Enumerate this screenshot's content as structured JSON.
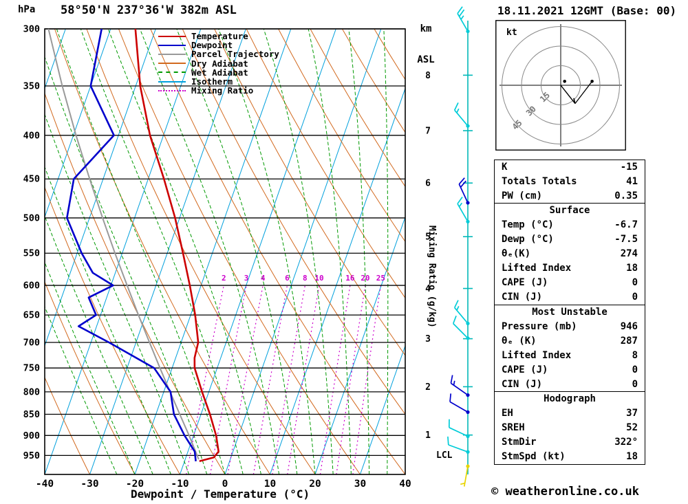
{
  "header": {
    "station": "58°50'N 237°36'W 382m ASL",
    "datetime": "18.11.2021 12GMT (Base: 00)"
  },
  "axes": {
    "hpa_label": "hPa",
    "km_label": "km",
    "asl_label": "ASL",
    "bottom_label": "Dewpoint / Temperature (°C)",
    "mixing_ratio_label": "Mixing Ratio (g/kg)",
    "lcl_label": "LCL",
    "pressure_ticks": [
      300,
      350,
      400,
      450,
      500,
      550,
      600,
      650,
      700,
      750,
      800,
      850,
      900,
      950
    ],
    "temp_ticks": [
      -40,
      -30,
      -20,
      -10,
      0,
      10,
      20,
      30,
      40
    ]
  },
  "legend": [
    {
      "label": "Temperature",
      "color": "#cc0000",
      "style": "solid"
    },
    {
      "label": "Dewpoint",
      "color": "#0000cc",
      "style": "solid"
    },
    {
      "label": "Parcel Trajectory",
      "color": "#999999",
      "style": "solid"
    },
    {
      "label": "Dry Adiabat",
      "color": "#d2691e",
      "style": "solid"
    },
    {
      "label": "Wet Adiabat",
      "color": "#009900",
      "style": "dashed"
    },
    {
      "label": "Isotherm",
      "color": "#00a0dc",
      "style": "solid"
    },
    {
      "label": "Mixing Ratio",
      "color": "#cc00cc",
      "style": "dotted"
    }
  ],
  "colors": {
    "temperature": "#cc0000",
    "dewpoint": "#0000cc",
    "parcel": "#9a9a9a",
    "dry_adiabat": "#d2691e",
    "wet_adiabat": "#009900",
    "isotherm": "#00a0dc",
    "mixing_ratio": "#cc00cc",
    "pressure_line": "#000000",
    "wind_staff": "#00b8b8"
  },
  "chart_data": {
    "type": "line",
    "subtype": "skewt-log-p-sounding",
    "pressure_range_hpa": [
      300,
      1000
    ],
    "temp_axis_range_c": [
      -40,
      40
    ],
    "temperature_profile": [
      [
        965,
        -6.7
      ],
      [
        955,
        -3.8
      ],
      [
        940,
        -3.2
      ],
      [
        900,
        -5
      ],
      [
        850,
        -8
      ],
      [
        800,
        -11.5
      ],
      [
        750,
        -15
      ],
      [
        730,
        -15.8
      ],
      [
        700,
        -16.2
      ],
      [
        650,
        -19
      ],
      [
        600,
        -22.5
      ],
      [
        550,
        -26.5
      ],
      [
        500,
        -31
      ],
      [
        450,
        -36.5
      ],
      [
        400,
        -43
      ],
      [
        350,
        -49
      ],
      [
        300,
        -54.5
      ]
    ],
    "dewpoint_profile": [
      [
        965,
        -7.5
      ],
      [
        940,
        -8.5
      ],
      [
        900,
        -12
      ],
      [
        850,
        -16
      ],
      [
        800,
        -18.5
      ],
      [
        750,
        -24
      ],
      [
        700,
        -36
      ],
      [
        670,
        -44
      ],
      [
        650,
        -41
      ],
      [
        620,
        -44
      ],
      [
        600,
        -39.5
      ],
      [
        580,
        -45
      ],
      [
        550,
        -49
      ],
      [
        500,
        -55
      ],
      [
        450,
        -56.5
      ],
      [
        400,
        -51
      ],
      [
        350,
        -60
      ],
      [
        300,
        -62
      ]
    ],
    "parcel_profile": [
      [
        960,
        -7
      ],
      [
        900,
        -11
      ],
      [
        850,
        -14.7
      ],
      [
        800,
        -18.6
      ],
      [
        750,
        -22.7
      ],
      [
        700,
        -27
      ],
      [
        650,
        -31.6
      ],
      [
        600,
        -36.4
      ],
      [
        550,
        -41.6
      ],
      [
        500,
        -47.1
      ],
      [
        450,
        -53
      ],
      [
        400,
        -59.4
      ],
      [
        350,
        -66.3
      ],
      [
        300,
        -73.8
      ]
    ],
    "lcl_pressure_hpa": 955,
    "isotherm_step_c": 10,
    "mixing_ratio_lines_gkg": [
      2,
      3,
      4,
      6,
      8,
      10,
      16,
      20,
      25
    ],
    "km_levels": [
      {
        "km": 8,
        "p": 340
      },
      {
        "km": 7,
        "p": 395
      },
      {
        "km": 6,
        "p": 455
      },
      {
        "km": 5,
        "p": 526
      },
      {
        "km": 4,
        "p": 605
      },
      {
        "km": 3,
        "p": 693
      },
      {
        "km": 2,
        "p": 789
      },
      {
        "km": 1,
        "p": 899
      }
    ],
    "wind_barbs": [
      {
        "p": 302,
        "speed_kt": 25,
        "dir_deg": 330,
        "color": "#00ccd8"
      },
      {
        "p": 390,
        "speed_kt": 15,
        "dir_deg": 320,
        "color": "#00ccd8"
      },
      {
        "p": 480,
        "speed_kt": 20,
        "dir_deg": 335,
        "color": "#0000cc"
      },
      {
        "p": 505,
        "speed_kt": 15,
        "dir_deg": 330,
        "color": "#00ccd8"
      },
      {
        "p": 665,
        "speed_kt": 15,
        "dir_deg": 320,
        "color": "#00ccd8"
      },
      {
        "p": 692,
        "speed_kt": 10,
        "dir_deg": 315,
        "color": "#00ccd8"
      },
      {
        "p": 807,
        "speed_kt": 15,
        "dir_deg": 305,
        "color": "#0000cc"
      },
      {
        "p": 845,
        "speed_kt": 10,
        "dir_deg": 300,
        "color": "#0000cc"
      },
      {
        "p": 902,
        "speed_kt": 10,
        "dir_deg": 295,
        "color": "#00ccd8"
      },
      {
        "p": 941,
        "speed_kt": 8,
        "dir_deg": 290,
        "color": "#00ccd8"
      },
      {
        "p": 978,
        "speed_kt": 5,
        "dir_deg": 190,
        "color": "#e8d400"
      }
    ]
  },
  "hodograph": {
    "unit_label": "kt",
    "rings_kt": [
      15,
      30,
      45
    ],
    "trace_kt": [
      [
        11,
        -14
      ],
      [
        24,
        3
      ]
    ],
    "dots_kt": [
      [
        24,
        3
      ],
      [
        3,
        3
      ]
    ],
    "storm_vector_kt": [
      11,
      -14
    ]
  },
  "tables": [
    {
      "rows": [
        [
          "K",
          "-15"
        ],
        [
          "Totals Totals",
          "41"
        ],
        [
          "PW (cm)",
          "0.35"
        ]
      ]
    },
    {
      "header": "Surface",
      "rows": [
        [
          "Temp (°C)",
          "-6.7"
        ],
        [
          "Dewp (°C)",
          "-7.5"
        ],
        [
          "θₑ(K)",
          "274"
        ],
        [
          "Lifted Index",
          "18"
        ],
        [
          "CAPE (J)",
          "0"
        ],
        [
          "CIN (J)",
          "0"
        ]
      ]
    },
    {
      "header": "Most Unstable",
      "rows": [
        [
          "Pressure (mb)",
          "946"
        ],
        [
          "θₑ (K)",
          "287"
        ],
        [
          "Lifted Index",
          "8"
        ],
        [
          "CAPE (J)",
          "0"
        ],
        [
          "CIN (J)",
          "0"
        ]
      ]
    },
    {
      "header": "Hodograph",
      "rows": [
        [
          "EH",
          "37"
        ],
        [
          "SREH",
          "52"
        ],
        [
          "StmDir",
          "322°"
        ],
        [
          "StmSpd (kt)",
          "18"
        ]
      ]
    }
  ],
  "footer": {
    "credit": "© weatheronline.co.uk"
  }
}
